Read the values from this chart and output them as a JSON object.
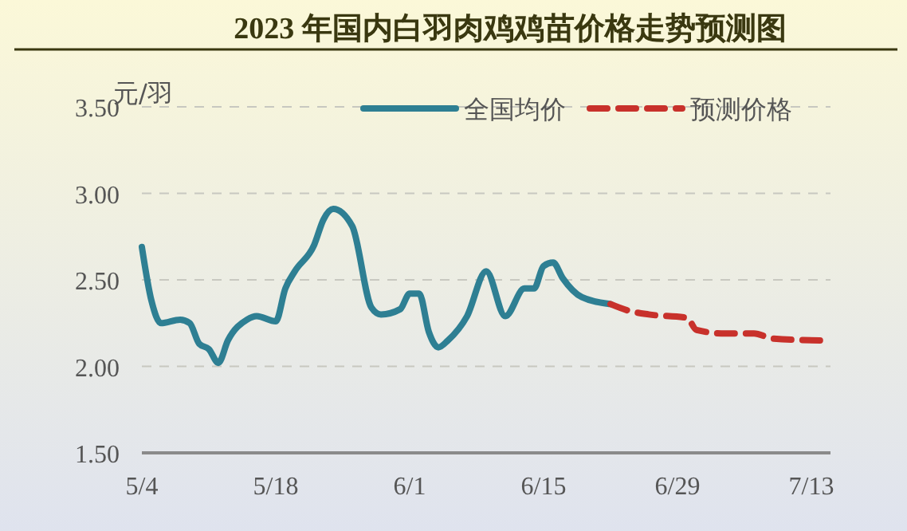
{
  "chart_data": {
    "type": "line",
    "title": "2023 年国内白羽肉鸡鸡苗价格走势预测图",
    "ylabel": "元/羽",
    "xlim": [
      "--05-04",
      "--07-15"
    ],
    "xticks": [
      {
        "value": "--05-04",
        "label": "5/4"
      },
      {
        "value": "--05-18",
        "label": "5/18"
      },
      {
        "value": "--06-01",
        "label": "6/1"
      },
      {
        "value": "--06-15",
        "label": "6/15"
      },
      {
        "value": "--06-29",
        "label": "6/29"
      },
      {
        "value": "--07-13",
        "label": "7/13"
      }
    ],
    "ylim": [
      1.5,
      3.5
    ],
    "yticks": [
      {
        "value": 1.5,
        "label": "1.50"
      },
      {
        "value": 2,
        "label": "2.00"
      },
      {
        "value": 2.5,
        "label": "2.50"
      },
      {
        "value": 3,
        "label": "3.00"
      },
      {
        "value": 3.5,
        "label": "3.50"
      }
    ],
    "grid": "y",
    "legend": "top right",
    "series": [
      {
        "name": "全国均价",
        "color": "#2e7f93",
        "line_style": "solid",
        "x": [
          "--05-04",
          "--05-05",
          "--05-06",
          "--05-08",
          "--05-09",
          "--05-10",
          "--05-11",
          "--05-12",
          "--05-13",
          "--05-15",
          "--05-16",
          "--05-18",
          "--05-19",
          "--05-20",
          "--05-22",
          "--05-23",
          "--05-24",
          "--05-26",
          "--05-28",
          "--05-29",
          "--05-31",
          "--06-01",
          "--06-02",
          "--06-03",
          "--06-04",
          "--06-05",
          "--06-07",
          "--06-09",
          "--06-11",
          "--06-13",
          "--06-14",
          "--06-15",
          "--06-16",
          "--06-17",
          "--06-19",
          "--06-22"
        ],
        "values": [
          2.69,
          2.38,
          2.25,
          2.27,
          2.25,
          2.13,
          2.1,
          2.02,
          2.15,
          2.27,
          2.29,
          2.26,
          2.45,
          2.55,
          2.7,
          2.85,
          2.91,
          2.81,
          2.34,
          2.3,
          2.33,
          2.42,
          2.42,
          2.2,
          2.11,
          2.15,
          2.29,
          2.55,
          2.29,
          2.45,
          2.45,
          2.58,
          2.6,
          2.51,
          2.4,
          2.36
        ]
      },
      {
        "name": "预测价格",
        "color": "#c8312b",
        "line_style": "dashed",
        "x": [
          "--06-22",
          "--06-24",
          "--06-26",
          "--06-30",
          "--07-01",
          "--07-04",
          "--07-07",
          "--07-09",
          "--07-14"
        ],
        "values": [
          2.36,
          2.32,
          2.3,
          2.28,
          2.21,
          2.19,
          2.19,
          2.16,
          2.15
        ]
      }
    ]
  }
}
